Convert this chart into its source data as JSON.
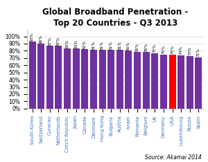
{
  "title": "Global Broadband Penetration -\nTop 20 Countries - Q3 2013",
  "source": "Source: Akamai 2014",
  "categories": [
    "South Korea",
    "Switzerland",
    "Curacao",
    "Netherlands",
    "Czech Republic",
    "Japan",
    "Canada",
    "Denmark",
    "Hong Kong",
    "Bulgaria",
    "Austria",
    "Israel",
    "Romania",
    "Belgium",
    "UK",
    "Germany",
    "USA",
    "Luxembourg",
    "Russia",
    "Spain"
  ],
  "values": [
    93,
    90,
    87,
    87,
    83,
    83,
    82,
    81,
    81,
    81,
    81,
    80,
    78,
    78,
    77,
    75,
    75,
    74,
    73,
    71
  ],
  "bar_colors": [
    "#7030A0",
    "#7030A0",
    "#7030A0",
    "#7030A0",
    "#7030A0",
    "#7030A0",
    "#7030A0",
    "#7030A0",
    "#7030A0",
    "#7030A0",
    "#7030A0",
    "#7030A0",
    "#7030A0",
    "#7030A0",
    "#7030A0",
    "#7030A0",
    "#FF0000",
    "#7030A0",
    "#7030A0",
    "#7030A0"
  ],
  "ylim": [
    0,
    110
  ],
  "yticks": [
    0,
    10,
    20,
    30,
    40,
    50,
    60,
    70,
    80,
    90,
    100
  ],
  "ytick_labels": [
    "0%",
    "10%",
    "20%",
    "30%",
    "40%",
    "50%",
    "60%",
    "70%",
    "80%",
    "90%",
    "100%"
  ],
  "bar_label_fontsize": 4.2,
  "title_fontsize": 8.5,
  "xlabel_fontsize": 5.0,
  "ylabel_fontsize": 5.5,
  "source_fontsize": 5.5,
  "xlabel_color": "#4472C4",
  "background_color": "#FFFFFF",
  "grid_color": "#D9D9D9",
  "bar_width": 0.8
}
